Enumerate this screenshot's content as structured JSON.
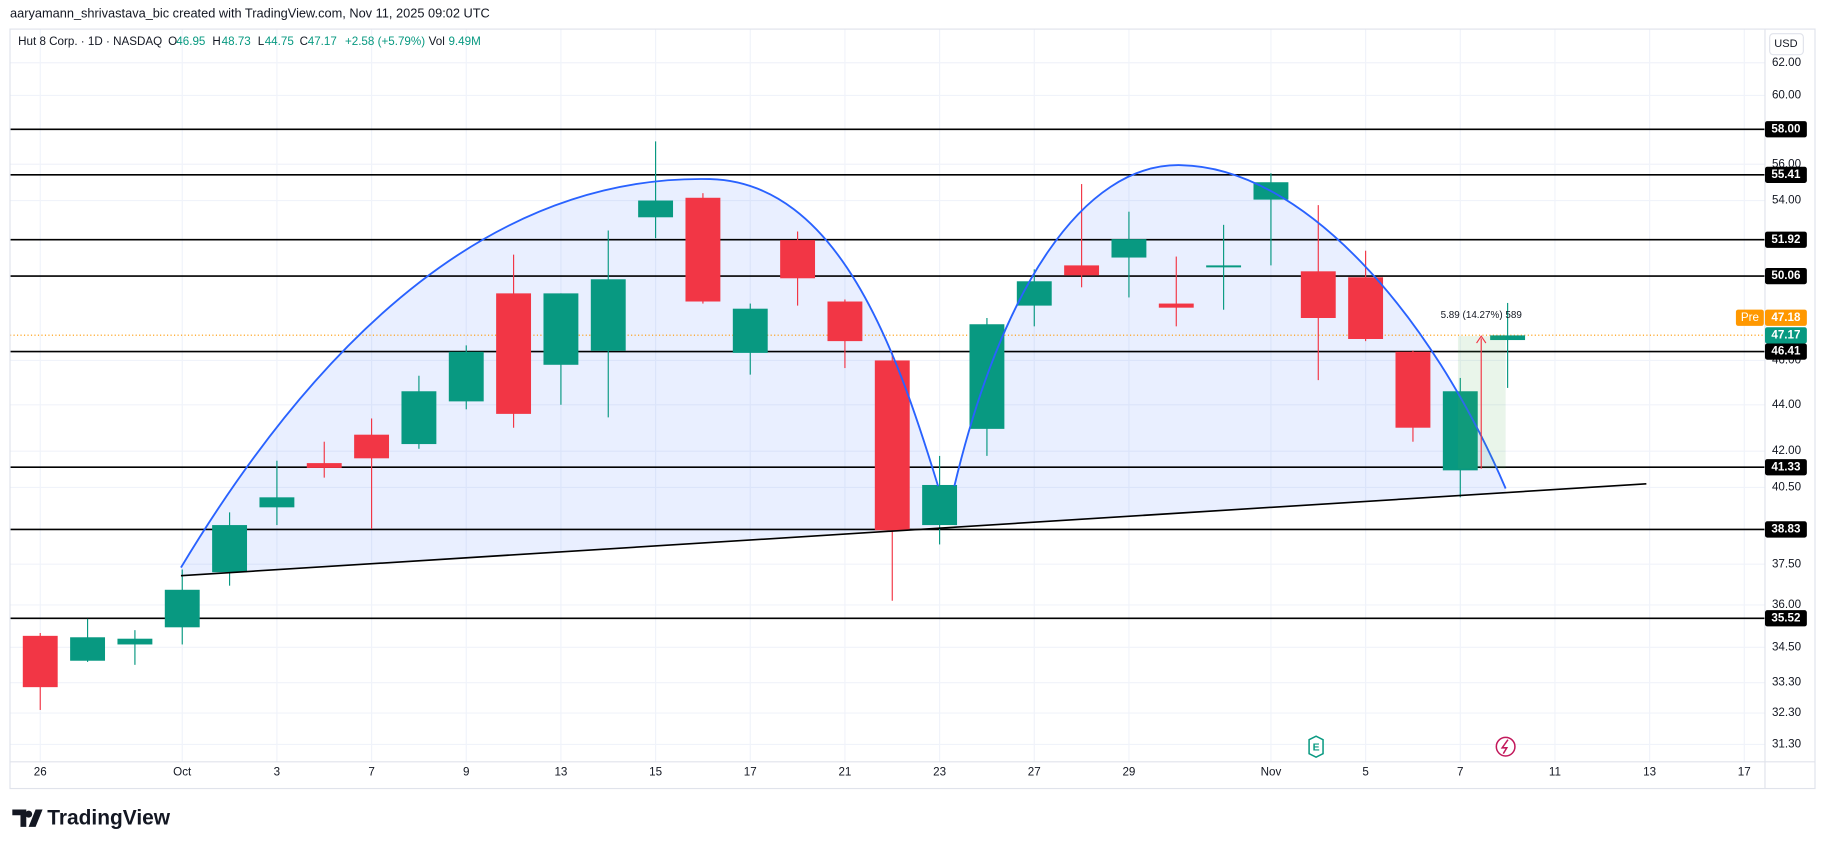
{
  "header": {
    "attribution": "aaryamann_shrivastava_bic created with TradingView.com, Nov 11, 2025 09:02 UTC",
    "symbol": "Hut 8 Corp. · 1D · NASDAQ",
    "ohlc_keys": [
      "O",
      "H",
      "L",
      "C"
    ],
    "change": "+2.58 (+5.79%)",
    "volume_key": "Vol",
    "volume": "9.49M"
  },
  "chart_data": {
    "type": "candlestick",
    "categories": [
      "26",
      null,
      null,
      "Oct",
      null,
      "3",
      null,
      "7",
      null,
      "9",
      null,
      "13",
      null,
      "15",
      null,
      "17",
      null,
      "21",
      null,
      "23",
      null,
      "27",
      null,
      "29",
      null,
      null,
      "Nov",
      null,
      "5",
      null,
      "7",
      null,
      "11",
      null,
      "13",
      null,
      "17"
    ],
    "open": [
      34.9,
      34.04,
      34.6,
      35.2,
      37.2,
      39.7,
      41.5,
      42.7,
      42.3,
      44.15,
      49.2,
      45.8,
      46.45,
      53.1,
      54.15,
      46.35,
      51.9,
      48.8,
      46.0,
      39.0,
      42.95,
      48.6,
      50.6,
      51.0,
      48.7,
      50.5,
      54.05,
      50.3,
      50.0,
      46.4,
      41.2,
      46.95,
      null,
      null,
      null,
      null,
      null
    ],
    "high": [
      35.0,
      35.5,
      35.1,
      37.3,
      39.5,
      41.6,
      42.4,
      43.4,
      45.3,
      46.7,
      51.15,
      49.2,
      52.4,
      57.3,
      54.4,
      48.7,
      52.35,
      48.9,
      46.4,
      41.8,
      48.0,
      50.4,
      54.9,
      53.4,
      51.05,
      52.7,
      55.5,
      53.75,
      51.35,
      46.45,
      45.2,
      48.73,
      null,
      null,
      null,
      null,
      null
    ],
    "low": [
      32.4,
      34.0,
      33.9,
      34.6,
      36.7,
      39.0,
      40.9,
      38.85,
      42.1,
      43.8,
      43.0,
      44.0,
      43.45,
      52.0,
      48.7,
      45.35,
      48.6,
      45.65,
      36.15,
      38.25,
      41.8,
      47.6,
      49.5,
      49.0,
      47.6,
      48.4,
      50.6,
      45.1,
      46.9,
      42.4,
      40.1,
      44.75,
      null,
      null,
      null,
      null,
      null
    ],
    "close": [
      33.15,
      34.85,
      34.8,
      36.55,
      39.0,
      40.1,
      41.3,
      41.7,
      44.6,
      46.4,
      43.6,
      49.2,
      49.9,
      54.0,
      48.8,
      48.45,
      49.95,
      46.9,
      38.8,
      40.6,
      47.7,
      49.8,
      50.1,
      51.95,
      48.5,
      50.6,
      55.0,
      48.0,
      47.0,
      43.0,
      44.6,
      47.17,
      null,
      null,
      null,
      null,
      null
    ],
    "up_color": "#089981",
    "down_color": "#f23645",
    "log_scale": true,
    "grid": true,
    "ylim": [
      30.76,
      64.13
    ],
    "yticks": [
      {
        "value": 31.3,
        "label": "31.30"
      },
      {
        "value": 32.3,
        "label": "32.30"
      },
      {
        "value": 33.3,
        "label": "33.30"
      },
      {
        "value": 34.5,
        "label": "34.50"
      },
      {
        "value": 36,
        "label": "36.00"
      },
      {
        "value": 37.5,
        "label": "37.50"
      },
      {
        "value": 40.5,
        "label": "40.50"
      },
      {
        "value": 42,
        "label": "42.00"
      },
      {
        "value": 44,
        "label": "44.00"
      },
      {
        "value": 46,
        "label": "46.00"
      },
      {
        "value": 54,
        "label": "54.00"
      },
      {
        "value": 56,
        "label": "56.00"
      },
      {
        "value": 60,
        "label": "60.00"
      },
      {
        "value": 62,
        "label": "62.00"
      }
    ],
    "currency": "USD",
    "levels": [
      {
        "value": 58,
        "label": "58.00"
      },
      {
        "value": 55.41,
        "label": "55.41"
      },
      {
        "value": 51.92,
        "label": "51.92"
      },
      {
        "value": 50.06,
        "label": "50.06"
      },
      {
        "value": 46.41,
        "label": "46.41"
      },
      {
        "value": 41.33,
        "label": "41.33"
      },
      {
        "value": 38.83,
        "label": "38.83"
      },
      {
        "value": 35.52,
        "label": "35.52"
      }
    ],
    "pre_market": {
      "label": "Pre",
      "value": 47.18
    },
    "annotations": {
      "measure": "5.89 (14.27%) 589",
      "earnings": "E"
    }
  },
  "footer": {
    "brand": "TradingView"
  }
}
